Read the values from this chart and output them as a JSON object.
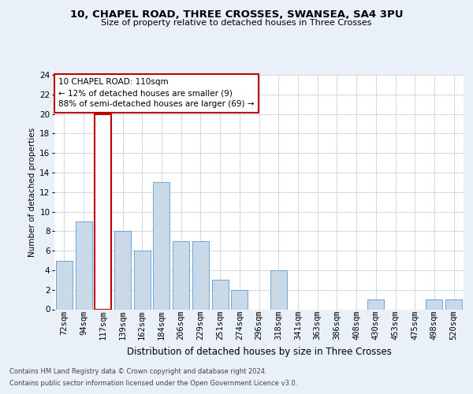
{
  "title1": "10, CHAPEL ROAD, THREE CROSSES, SWANSEA, SA4 3PU",
  "title2": "Size of property relative to detached houses in Three Crosses",
  "xlabel": "Distribution of detached houses by size in Three Crosses",
  "ylabel": "Number of detached properties",
  "bins": [
    "72sqm",
    "94sqm",
    "117sqm",
    "139sqm",
    "162sqm",
    "184sqm",
    "206sqm",
    "229sqm",
    "251sqm",
    "274sqm",
    "296sqm",
    "318sqm",
    "341sqm",
    "363sqm",
    "386sqm",
    "408sqm",
    "430sqm",
    "453sqm",
    "475sqm",
    "498sqm",
    "520sqm"
  ],
  "values": [
    5,
    9,
    20,
    8,
    6,
    13,
    7,
    7,
    3,
    2,
    0,
    4,
    0,
    0,
    0,
    0,
    1,
    0,
    0,
    1,
    1
  ],
  "highlight_index": 2,
  "bar_color": "#c9d9e8",
  "bar_edgecolor": "#5b9bd5",
  "highlight_color": "#c00000",
  "highlight_edgecolor": "#c00000",
  "background_color": "#eaf0f8",
  "plot_background": "#ffffff",
  "grid_color": "#d0d8e4",
  "annotation_text": "10 CHAPEL ROAD: 110sqm\n← 12% of detached houses are smaller (9)\n88% of semi-detached houses are larger (69) →",
  "footer1": "Contains HM Land Registry data © Crown copyright and database right 2024.",
  "footer2": "Contains public sector information licensed under the Open Government Licence v3.0.",
  "ylim": [
    0,
    24
  ],
  "yticks": [
    0,
    2,
    4,
    6,
    8,
    10,
    12,
    14,
    16,
    18,
    20,
    22,
    24
  ],
  "title1_fontsize": 9.5,
  "title2_fontsize": 8.0,
  "ylabel_fontsize": 7.5,
  "xlabel_fontsize": 8.5,
  "tick_fontsize": 7.5,
  "footer_fontsize": 6.0,
  "ann_fontsize": 7.5
}
